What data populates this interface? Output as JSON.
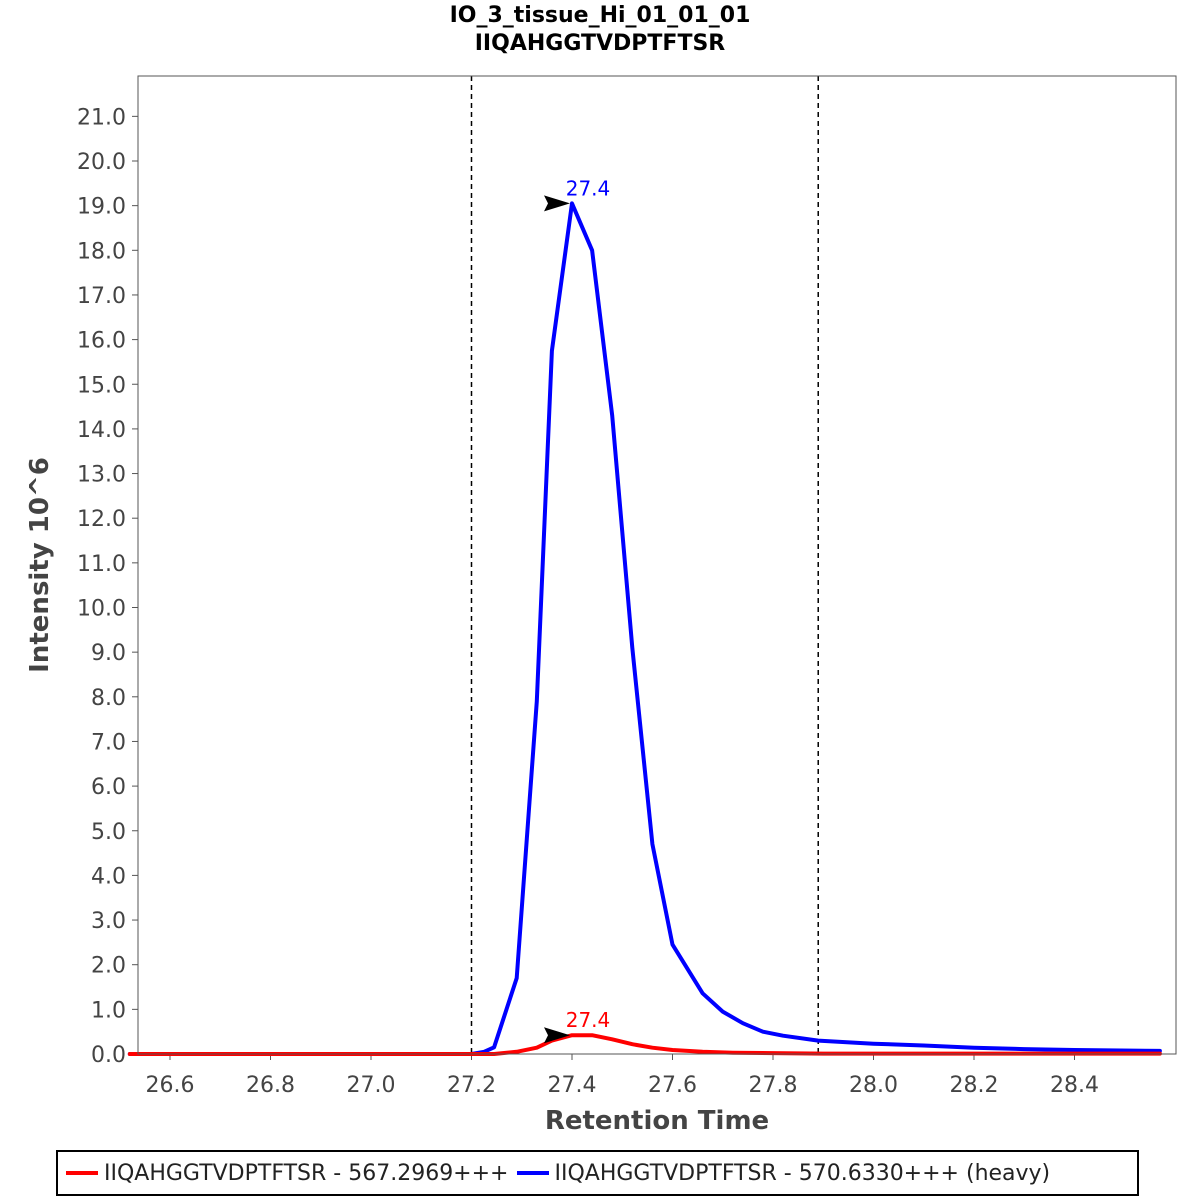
{
  "chart_data": {
    "type": "line",
    "title": "IO_3_tissue_Hi_01_01_01",
    "subtitle": "IIQAHGGTVDPTFTSR",
    "xlabel": "Retention Time",
    "ylabel": "Intensity 10^6",
    "xlim": [
      26.52,
      28.58
    ],
    "ylim": [
      0,
      21.9
    ],
    "xticks": [
      "26.6",
      "26.8",
      "27.0",
      "27.2",
      "27.4",
      "27.6",
      "27.8",
      "28.0",
      "28.2",
      "28.4"
    ],
    "yticks": [
      "0.0",
      "1.0",
      "2.0",
      "3.0",
      "4.0",
      "5.0",
      "6.0",
      "7.0",
      "8.0",
      "9.0",
      "10.0",
      "11.0",
      "12.0",
      "13.0",
      "14.0",
      "15.0",
      "16.0",
      "17.0",
      "18.0",
      "19.0",
      "20.0",
      "21.0"
    ],
    "grid": false,
    "legend_position": "bottom",
    "boundaries": [
      27.2,
      27.89
    ],
    "series": [
      {
        "name": "IIQAHGGTVDPTFTSR - 567.2969+++",
        "color": "#ff0000",
        "x": [
          26.52,
          27.2,
          27.245,
          27.29,
          27.33,
          27.36,
          27.4,
          27.44,
          27.48,
          27.52,
          27.56,
          27.6,
          27.66,
          27.72,
          27.8,
          27.9,
          28.0,
          28.2,
          28.4,
          28.57
        ],
        "y": [
          0.0,
          0.0,
          0.0,
          0.05,
          0.14,
          0.3,
          0.42,
          0.42,
          0.33,
          0.22,
          0.14,
          0.09,
          0.05,
          0.03,
          0.02,
          0.01,
          0.01,
          0.01,
          0.01,
          0.01
        ]
      },
      {
        "name": "IIQAHGGTVDPTFTSR - 570.6330+++ (heavy)",
        "color": "#0000ff",
        "x": [
          26.52,
          27.2,
          27.225,
          27.245,
          27.29,
          27.33,
          27.36,
          27.4,
          27.44,
          27.48,
          27.52,
          27.56,
          27.6,
          27.66,
          27.7,
          27.74,
          27.78,
          27.82,
          27.89,
          28.0,
          28.1,
          28.2,
          28.3,
          28.4,
          28.57
        ],
        "y": [
          0.0,
          0.0,
          0.05,
          0.15,
          1.7,
          7.9,
          15.75,
          19.05,
          18.0,
          14.3,
          9.1,
          4.7,
          2.45,
          1.36,
          0.95,
          0.69,
          0.5,
          0.41,
          0.3,
          0.23,
          0.19,
          0.14,
          0.11,
          0.09,
          0.07
        ]
      }
    ],
    "annotations": [
      {
        "series": 0,
        "text": "27.4",
        "x": 27.4,
        "y": 0.42
      },
      {
        "series": 1,
        "text": "27.4",
        "x": 27.4,
        "y": 19.05
      }
    ]
  }
}
